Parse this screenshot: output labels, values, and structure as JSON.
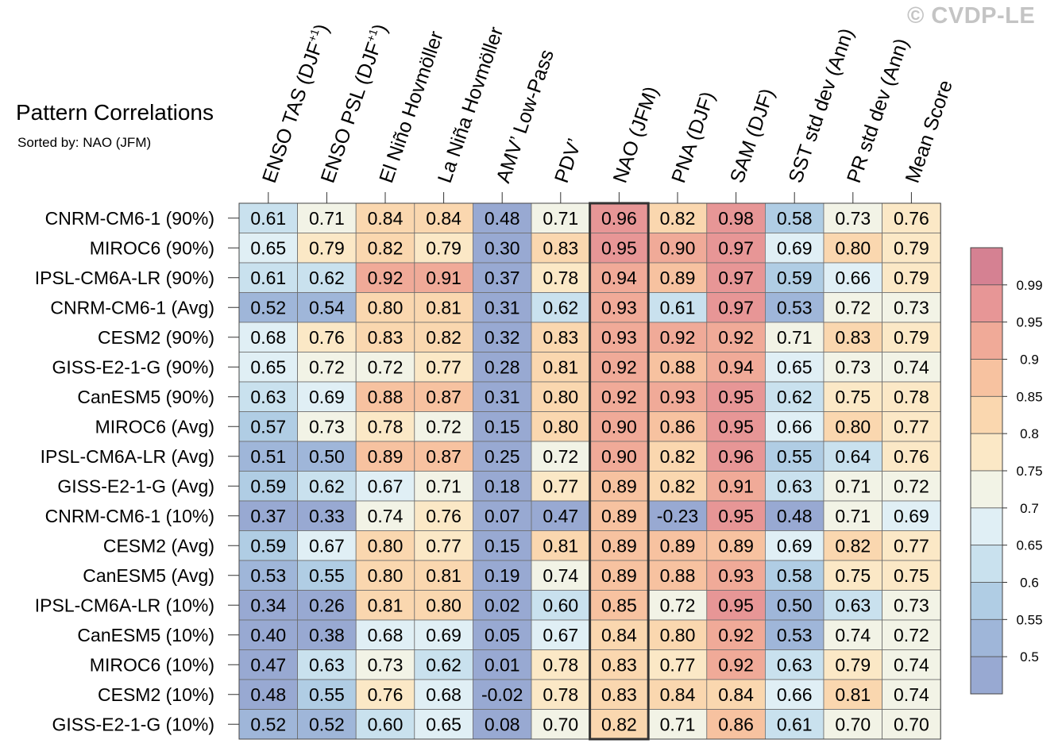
{
  "title": "Pattern Correlations",
  "subtitle": "Sorted by: NAO (JFM)",
  "watermark": "© CVDP-LE",
  "chart_data": {
    "type": "heatmap",
    "title": "Pattern Correlations",
    "subtitle": "Sorted by: NAO (JFM)",
    "columns": [
      {
        "text": "ENSO TAS (DJF",
        "sup": "+1",
        "tail": ")"
      },
      {
        "text": "ENSO PSL (DJF",
        "sup": "+1",
        "tail": ")"
      },
      {
        "text": "El Niño Hovmöller"
      },
      {
        "text": "La Niña Hovmöller"
      },
      {
        "text": "AMV’ Low-Pass"
      },
      {
        "text": "PDV’"
      },
      {
        "text": "NAO (JFM)"
      },
      {
        "text": "PNA (DJF)"
      },
      {
        "text": "SAM (DJF)"
      },
      {
        "text": "SST std dev (Ann)"
      },
      {
        "text": "PR std dev (Ann)"
      },
      {
        "text": "Mean Score"
      }
    ],
    "highlighted_column": "NAO (JFM)",
    "rows": [
      "CNRM-CM6-1 (90%)",
      "MIROC6 (90%)",
      "IPSL-CM6A-LR (90%)",
      "CNRM-CM6-1 (Avg)",
      "CESM2 (90%)",
      "GISS-E2-1-G (90%)",
      "CanESM5 (90%)",
      "MIROC6 (Avg)",
      "IPSL-CM6A-LR (Avg)",
      "GISS-E2-1-G (Avg)",
      "CNRM-CM6-1 (10%)",
      "CESM2 (Avg)",
      "CanESM5 (Avg)",
      "IPSL-CM6A-LR (10%)",
      "CanESM5 (10%)",
      "MIROC6 (10%)",
      "CESM2 (10%)",
      "GISS-E2-1-G (10%)"
    ],
    "values": [
      [
        "0.61",
        "0.71",
        "0.84",
        "0.84",
        "0.48",
        "0.71",
        "0.96",
        "0.82",
        "0.98",
        "0.58",
        "0.73",
        "0.76"
      ],
      [
        "0.65",
        "0.79",
        "0.82",
        "0.79",
        "0.30",
        "0.83",
        "0.95",
        "0.90",
        "0.97",
        "0.69",
        "0.80",
        "0.79"
      ],
      [
        "0.61",
        "0.62",
        "0.92",
        "0.91",
        "0.37",
        "0.78",
        "0.94",
        "0.89",
        "0.97",
        "0.59",
        "0.66",
        "0.79"
      ],
      [
        "0.52",
        "0.54",
        "0.80",
        "0.81",
        "0.31",
        "0.62",
        "0.93",
        "0.61",
        "0.97",
        "0.53",
        "0.72",
        "0.73"
      ],
      [
        "0.68",
        "0.76",
        "0.83",
        "0.82",
        "0.32",
        "0.83",
        "0.93",
        "0.92",
        "0.92",
        "0.71",
        "0.83",
        "0.79"
      ],
      [
        "0.65",
        "0.72",
        "0.72",
        "0.77",
        "0.28",
        "0.81",
        "0.92",
        "0.88",
        "0.94",
        "0.65",
        "0.73",
        "0.74"
      ],
      [
        "0.63",
        "0.69",
        "0.88",
        "0.87",
        "0.31",
        "0.80",
        "0.92",
        "0.93",
        "0.95",
        "0.62",
        "0.75",
        "0.78"
      ],
      [
        "0.57",
        "0.73",
        "0.78",
        "0.72",
        "0.15",
        "0.80",
        "0.90",
        "0.86",
        "0.95",
        "0.66",
        "0.80",
        "0.77"
      ],
      [
        "0.51",
        "0.50",
        "0.89",
        "0.87",
        "0.25",
        "0.72",
        "0.90",
        "0.82",
        "0.96",
        "0.55",
        "0.64",
        "0.76"
      ],
      [
        "0.59",
        "0.62",
        "0.67",
        "0.71",
        "0.18",
        "0.77",
        "0.89",
        "0.82",
        "0.91",
        "0.63",
        "0.71",
        "0.72"
      ],
      [
        "0.37",
        "0.33",
        "0.74",
        "0.76",
        "0.07",
        "0.47",
        "0.89",
        "-0.23",
        "0.95",
        "0.48",
        "0.71",
        "0.69"
      ],
      [
        "0.59",
        "0.67",
        "0.80",
        "0.77",
        "0.15",
        "0.81",
        "0.89",
        "0.89",
        "0.89",
        "0.69",
        "0.82",
        "0.77"
      ],
      [
        "0.53",
        "0.55",
        "0.80",
        "0.81",
        "0.19",
        "0.74",
        "0.89",
        "0.88",
        "0.93",
        "0.58",
        "0.75",
        "0.75"
      ],
      [
        "0.34",
        "0.26",
        "0.81",
        "0.80",
        "0.02",
        "0.60",
        "0.85",
        "0.72",
        "0.95",
        "0.50",
        "0.63",
        "0.73"
      ],
      [
        "0.40",
        "0.38",
        "0.68",
        "0.69",
        "0.05",
        "0.67",
        "0.84",
        "0.80",
        "0.92",
        "0.53",
        "0.74",
        "0.72"
      ],
      [
        "0.47",
        "0.63",
        "0.73",
        "0.62",
        "0.01",
        "0.78",
        "0.83",
        "0.77",
        "0.92",
        "0.63",
        "0.79",
        "0.74"
      ],
      [
        "0.48",
        "0.55",
        "0.76",
        "0.68",
        "-0.02",
        "0.78",
        "0.83",
        "0.84",
        "0.84",
        "0.66",
        "0.81",
        "0.74"
      ],
      [
        "0.52",
        "0.52",
        "0.60",
        "0.65",
        "0.08",
        "0.70",
        "0.82",
        "0.71",
        "0.86",
        "0.61",
        "0.70",
        "0.70"
      ]
    ],
    "colorbar": {
      "labels": [
        "0.99",
        "0.95",
        "0.9",
        "0.85",
        "0.8",
        "0.75",
        "0.7",
        "0.65",
        "0.6",
        "0.55",
        "0.5"
      ],
      "colors": [
        "#d58192",
        "#e79696",
        "#f0aa98",
        "#f7c2a0",
        "#fad7af",
        "#fbe8c6",
        "#f2f3e6",
        "#e0eff5",
        "#c9e1ee",
        "#b0cde4",
        "#9fb6d9",
        "#98a9d2"
      ]
    }
  }
}
